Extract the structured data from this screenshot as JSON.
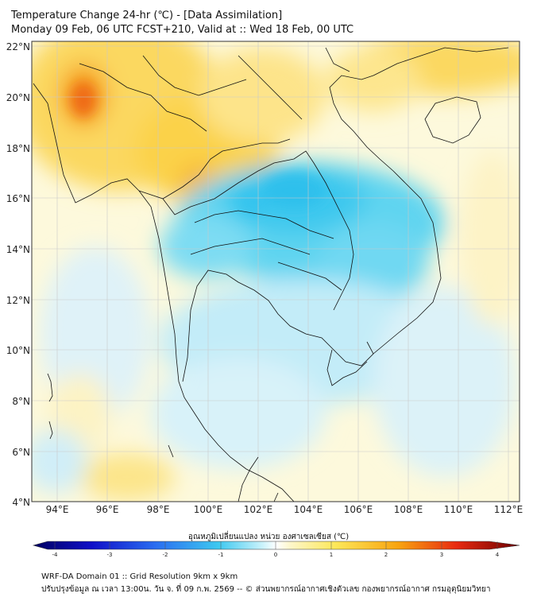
{
  "title": {
    "line1": "Temperature Change 24-hr (℃) - [Data Assimilation]",
    "line2": "Monday 09 Feb, 06 UTC FCST+210, Valid at :: Wed 18 Feb, 00 UTC"
  },
  "map": {
    "lat_labels": [
      "4°N",
      "6°N",
      "8°N",
      "10°N",
      "12°N",
      "14°N",
      "16°N",
      "18°N",
      "20°N",
      "22°N"
    ],
    "lon_labels": [
      "94°E",
      "96°E",
      "98°E",
      "100°E",
      "102°E",
      "104°E",
      "106°E",
      "108°E",
      "110°E",
      "112°E"
    ],
    "lat_range": [
      4,
      22.2
    ],
    "lon_range": [
      93.0,
      112.5
    ],
    "fields": [
      {
        "name": "warm-band-north",
        "level": 0.9
      },
      {
        "name": "hot-spot-myanmar",
        "level": 3.2
      },
      {
        "name": "cold-core-thailand-laos",
        "level": -1.6
      },
      {
        "name": "cool-gulf",
        "level": -0.6
      },
      {
        "name": "warm-south-andaman",
        "level": 0.8
      }
    ]
  },
  "colorbar": {
    "title": "อุณหภูมิเปลี่ยนแปลง หน่วย องศาเซลเซียส (℃)",
    "ticks": [
      "-4",
      "-3",
      "-2",
      "-1",
      "0",
      "1",
      "2",
      "3",
      "4"
    ],
    "min": -4,
    "max": 4
  },
  "footer": {
    "line1": "WRF-DA Domain 01 :: Grid Resolution 9km x 9km",
    "line2": "ปรับปรุงข้อมูล ณ เวลา 13:00น. วัน จ. ที่ 09 ก.พ. 2569 -- © ส่วนพยากรณ์อากาศเชิงตัวเลข กองพยากรณ์อากาศ กรมอุตุนิยมวิทยา"
  }
}
